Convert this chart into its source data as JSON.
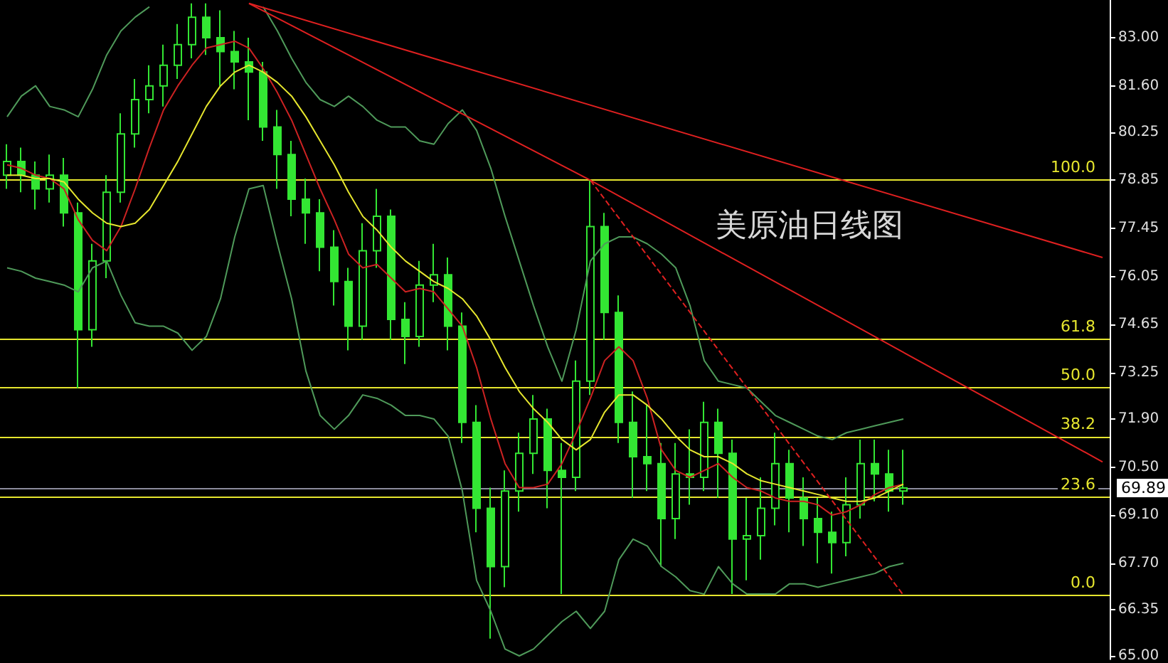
{
  "chart_data": {
    "type": "candlestick",
    "title": "美原油日线图",
    "categories": [
      null,
      null,
      null,
      null,
      null,
      null,
      null,
      null,
      null,
      null,
      null,
      null,
      null,
      null,
      null,
      null,
      null,
      null,
      null,
      null,
      null,
      null,
      null,
      null,
      null,
      null,
      null,
      null,
      null,
      null,
      null,
      null,
      null,
      null,
      null,
      null,
      null,
      null,
      null,
      null,
      null,
      null,
      null,
      null,
      null,
      null,
      null,
      null,
      null,
      null,
      null,
      null,
      null,
      null,
      null,
      null,
      null,
      null,
      null,
      null,
      null,
      null,
      null,
      null,
      null,
      null,
      null,
      null,
      null,
      null,
      null,
      null,
      null,
      null,
      null,
      null,
      null,
      null
    ],
    "color": "#33e633",
    "ohlc": [
      [
        79.0,
        79.9,
        78.6,
        79.4
      ],
      [
        79.4,
        79.8,
        78.5,
        79.0
      ],
      [
        79.0,
        79.4,
        78.0,
        78.6
      ],
      [
        78.6,
        79.6,
        78.2,
        79.0
      ],
      [
        79.0,
        79.5,
        77.5,
        77.9
      ],
      [
        77.9,
        78.2,
        72.8,
        74.5
      ],
      [
        74.5,
        77.0,
        74.0,
        76.5
      ],
      [
        76.5,
        79.0,
        76.0,
        78.5
      ],
      [
        78.5,
        80.8,
        78.2,
        80.2
      ],
      [
        80.2,
        81.8,
        79.8,
        81.2
      ],
      [
        81.2,
        82.2,
        80.8,
        81.6
      ],
      [
        81.6,
        82.8,
        81.0,
        82.2
      ],
      [
        82.2,
        83.4,
        81.8,
        82.8
      ],
      [
        82.8,
        84.0,
        82.4,
        83.6
      ],
      [
        83.6,
        84.0,
        82.5,
        83.0
      ],
      [
        83.0,
        83.8,
        81.6,
        82.6
      ],
      [
        82.6,
        83.2,
        81.5,
        82.3
      ],
      [
        82.3,
        83.0,
        80.6,
        82.0
      ],
      [
        82.0,
        82.3,
        80.0,
        80.4
      ],
      [
        80.4,
        80.9,
        78.6,
        79.6
      ],
      [
        79.6,
        80.0,
        77.8,
        78.3
      ],
      [
        78.3,
        78.9,
        77.0,
        77.9
      ],
      [
        77.9,
        78.3,
        76.2,
        76.9
      ],
      [
        76.9,
        77.4,
        75.2,
        75.9
      ],
      [
        75.9,
        76.3,
        73.9,
        74.6
      ],
      [
        74.6,
        77.6,
        74.2,
        76.8
      ],
      [
        76.8,
        78.6,
        76.3,
        77.8
      ],
      [
        77.8,
        78.0,
        74.2,
        74.8
      ],
      [
        74.8,
        75.3,
        73.5,
        74.3
      ],
      [
        74.3,
        76.5,
        74.0,
        75.8
      ],
      [
        75.8,
        77.0,
        75.3,
        76.1
      ],
      [
        76.1,
        76.6,
        73.9,
        74.6
      ],
      [
        74.6,
        75.0,
        71.2,
        71.8
      ],
      [
        71.8,
        72.3,
        68.6,
        69.3
      ],
      [
        69.3,
        69.9,
        65.5,
        67.6
      ],
      [
        67.6,
        70.4,
        67.0,
        69.8
      ],
      [
        69.8,
        71.5,
        69.2,
        70.9
      ],
      [
        70.9,
        72.6,
        70.3,
        71.9
      ],
      [
        71.9,
        72.2,
        69.3,
        70.4
      ],
      [
        70.4,
        71.2,
        66.8,
        70.2
      ],
      [
        70.2,
        73.6,
        69.8,
        73.0
      ],
      [
        73.0,
        78.85,
        72.6,
        77.5
      ],
      [
        77.5,
        77.9,
        74.2,
        75.0
      ],
      [
        75.0,
        75.5,
        71.2,
        71.8
      ],
      [
        71.8,
        72.7,
        69.6,
        70.8
      ],
      [
        70.8,
        72.3,
        69.8,
        70.6
      ],
      [
        70.6,
        71.2,
        67.6,
        69.0
      ],
      [
        69.0,
        71.2,
        68.4,
        70.3
      ],
      [
        70.3,
        71.6,
        69.4,
        70.2
      ],
      [
        70.2,
        72.4,
        69.8,
        71.8
      ],
      [
        71.8,
        72.2,
        69.6,
        70.9
      ],
      [
        70.9,
        71.3,
        66.8,
        68.4
      ],
      [
        68.4,
        69.6,
        67.2,
        68.5
      ],
      [
        68.5,
        70.2,
        67.8,
        69.3
      ],
      [
        69.3,
        71.5,
        68.8,
        70.6
      ],
      [
        70.6,
        71.0,
        68.6,
        69.6
      ],
      [
        69.6,
        70.2,
        68.2,
        69.0
      ],
      [
        69.0,
        69.6,
        67.7,
        68.6
      ],
      [
        68.6,
        69.2,
        67.4,
        68.3
      ],
      [
        68.3,
        70.2,
        67.9,
        69.4
      ],
      [
        69.4,
        71.3,
        69.0,
        70.6
      ],
      [
        70.6,
        71.3,
        69.5,
        70.3
      ],
      [
        70.3,
        71.0,
        69.2,
        69.8
      ],
      [
        69.8,
        71.0,
        69.4,
        69.89
      ],
      null,
      null,
      null,
      null,
      null,
      null,
      null,
      null,
      null,
      null,
      null,
      null,
      null,
      null
    ],
    "series": [
      {
        "type": "line",
        "color": "#cc2222",
        "values": [
          79.3,
          79.2,
          79.0,
          78.9,
          78.6,
          77.7,
          77.1,
          76.8,
          77.5,
          78.6,
          79.8,
          80.9,
          81.6,
          82.2,
          82.7,
          82.8,
          82.9,
          82.7,
          82.1,
          81.4,
          80.6,
          79.6,
          78.6,
          77.7,
          76.7,
          76.3,
          76.4,
          76.0,
          75.6,
          75.7,
          75.6,
          75.1,
          74.6,
          73.4,
          71.9,
          70.6,
          69.9,
          69.9,
          70.0,
          70.6,
          71.5,
          72.5,
          73.6,
          74.0,
          73.6,
          72.5,
          71.0,
          70.4,
          70.2,
          70.4,
          70.6,
          70.2,
          69.9,
          69.8,
          69.6,
          69.5,
          69.5,
          69.4,
          69.1,
          69.2,
          69.4,
          69.7,
          69.9,
          70.0,
          null,
          null,
          null,
          null,
          null,
          null,
          null,
          null,
          null,
          null,
          null,
          null,
          null,
          null
        ]
      },
      {
        "type": "line",
        "color": "#e6e62e",
        "values": [
          79.0,
          79.0,
          78.9,
          78.9,
          78.8,
          78.3,
          77.9,
          77.6,
          77.5,
          77.6,
          78.0,
          78.7,
          79.4,
          80.2,
          81.0,
          81.6,
          82.0,
          82.2,
          82.0,
          81.7,
          81.3,
          80.7,
          80.0,
          79.3,
          78.5,
          77.8,
          77.4,
          76.9,
          76.5,
          76.2,
          75.9,
          75.7,
          75.4,
          74.9,
          74.2,
          73.4,
          72.7,
          72.2,
          71.8,
          71.3,
          71.0,
          71.3,
          72.1,
          72.6,
          72.6,
          72.3,
          71.9,
          71.4,
          71.0,
          70.8,
          70.8,
          70.6,
          70.3,
          70.1,
          70.0,
          69.9,
          69.8,
          69.7,
          69.6,
          69.5,
          69.5,
          69.6,
          69.8,
          70.0,
          null,
          null,
          null,
          null,
          null,
          null,
          null,
          null,
          null,
          null,
          null,
          null,
          null,
          null
        ]
      },
      {
        "type": "line",
        "color": "#4f9a5a",
        "values": [
          80.7,
          81.3,
          81.6,
          81.0,
          80.9,
          80.7,
          81.5,
          82.5,
          83.2,
          83.6,
          83.9,
          null,
          null,
          null,
          null,
          null,
          null,
          null,
          83.9,
          83.2,
          82.4,
          81.7,
          81.2,
          81.0,
          81.3,
          81.0,
          80.6,
          80.4,
          80.4,
          80.0,
          79.9,
          80.5,
          80.9,
          80.3,
          79.2,
          77.8,
          76.5,
          75.2,
          74.0,
          73.0,
          74.5,
          76.5,
          77.0,
          77.2,
          77.2,
          77.0,
          76.7,
          76.3,
          75.2,
          73.6,
          73.0,
          72.9,
          72.8,
          72.4,
          72.0,
          71.8,
          71.6,
          71.4,
          71.3,
          71.5,
          71.6,
          71.7,
          71.8,
          71.9,
          null,
          null,
          null,
          null,
          null,
          null,
          null,
          null,
          null,
          null,
          null,
          null,
          null,
          null
        ]
      },
      {
        "type": "line",
        "color": "#4f9a5a",
        "values": [
          76.3,
          76.2,
          76.0,
          75.9,
          75.8,
          75.6,
          76.3,
          76.5,
          75.5,
          74.7,
          74.6,
          74.6,
          74.4,
          73.9,
          74.3,
          75.4,
          77.2,
          78.6,
          78.7,
          77.0,
          75.4,
          73.3,
          72.0,
          71.6,
          72.0,
          72.6,
          72.5,
          72.3,
          72.0,
          72.0,
          71.9,
          71.4,
          69.8,
          67.2,
          66.3,
          65.2,
          65.0,
          65.2,
          65.6,
          66.0,
          66.3,
          65.8,
          66.3,
          67.8,
          68.4,
          68.2,
          67.6,
          67.3,
          66.9,
          66.8,
          67.6,
          67.1,
          66.8,
          66.8,
          66.8,
          67.1,
          67.1,
          67.0,
          67.1,
          67.2,
          67.3,
          67.4,
          67.6,
          67.7,
          null,
          null,
          null,
          null,
          null,
          null,
          null,
          null,
          null,
          null,
          null,
          null,
          null,
          null
        ]
      },
      {
        "type": "line",
        "color": "#e02020",
        "values": [
          null,
          null,
          null,
          null,
          null,
          null,
          null,
          null,
          null,
          null,
          null,
          null,
          null,
          null,
          null,
          null,
          null,
          84.0,
          null,
          null,
          null,
          null,
          null,
          null,
          null,
          null,
          null,
          null,
          null,
          null,
          null,
          null,
          null,
          null,
          null,
          null,
          null,
          null,
          null,
          null,
          null,
          null,
          null,
          null,
          null,
          null,
          null,
          null,
          null,
          null,
          null,
          null,
          null,
          null,
          null,
          null,
          null,
          null,
          null,
          null,
          null,
          null,
          null,
          null,
          null,
          null,
          null,
          null,
          null,
          null,
          null,
          null,
          null,
          null,
          null,
          null,
          null,
          76.6
        ]
      },
      {
        "type": "line",
        "color": "#e02020",
        "values": [
          null,
          null,
          null,
          null,
          null,
          null,
          null,
          null,
          null,
          null,
          null,
          null,
          null,
          null,
          null,
          null,
          null,
          84.0,
          null,
          null,
          null,
          null,
          null,
          null,
          null,
          null,
          null,
          null,
          null,
          null,
          null,
          null,
          null,
          null,
          null,
          null,
          null,
          null,
          null,
          null,
          null,
          78.85,
          null,
          null,
          null,
          null,
          null,
          null,
          null,
          null,
          null,
          null,
          null,
          null,
          null,
          null,
          null,
          null,
          null,
          null,
          null,
          null,
          null,
          null,
          null,
          null,
          null,
          null,
          null,
          null,
          null,
          null,
          null,
          null,
          null,
          null,
          null,
          70.65
        ]
      },
      {
        "type": "line",
        "color": "#e02020",
        "line_style": "dashed",
        "values": [
          null,
          null,
          null,
          null,
          null,
          null,
          null,
          null,
          null,
          null,
          null,
          null,
          null,
          null,
          null,
          null,
          null,
          null,
          null,
          null,
          null,
          null,
          null,
          null,
          null,
          null,
          null,
          null,
          null,
          null,
          null,
          null,
          null,
          null,
          null,
          null,
          null,
          null,
          null,
          null,
          null,
          78.85,
          null,
          null,
          null,
          null,
          null,
          null,
          null,
          null,
          null,
          null,
          null,
          null,
          null,
          null,
          null,
          null,
          null,
          null,
          null,
          null,
          null,
          66.77,
          null,
          null,
          null,
          null,
          null,
          null,
          null,
          null,
          null,
          null,
          null,
          null,
          null,
          null
        ]
      }
    ],
    "ref_lines": [
      {
        "axis": "y",
        "value": 78.85,
        "color": "#e6e62e"
      },
      {
        "axis": "y",
        "value": 74.22,
        "color": "#e6e62e"
      },
      {
        "axis": "y",
        "value": 72.81,
        "color": "#e6e62e"
      },
      {
        "axis": "y",
        "value": 71.38,
        "color": "#e6e62e"
      },
      {
        "axis": "y",
        "value": 69.62,
        "color": "#e6e62e"
      },
      {
        "axis": "y",
        "value": 66.77,
        "color": "#e6e62e"
      },
      {
        "axis": "y",
        "value": 69.89,
        "label": "69.89",
        "color": "#8c8c9c"
      }
    ],
    "annotations": [
      {
        "text": "100.0",
        "y": 78.85
      },
      {
        "text": "61.8",
        "y": 74.22
      },
      {
        "text": "50.0",
        "y": 72.81
      },
      {
        "text": "38.2",
        "y": 71.38
      },
      {
        "text": "23.6",
        "y": 69.62
      },
      {
        "text": "0.0",
        "y": 66.77
      }
    ],
    "ylim": [
      64.9,
      84.1
    ],
    "yticks": [
      {
        "value": 65.0,
        "label": "65.00"
      },
      {
        "value": 66.35,
        "label": "66.35"
      },
      {
        "value": 67.7,
        "label": "67.70"
      },
      {
        "value": 69.1,
        "label": "69.10"
      },
      {
        "value": 70.5,
        "label": "70.50"
      },
      {
        "value": 71.9,
        "label": "71.90"
      },
      {
        "value": 73.25,
        "label": "73.25"
      },
      {
        "value": 74.65,
        "label": "74.65"
      },
      {
        "value": 76.05,
        "label": "76.05"
      },
      {
        "value": 77.45,
        "label": "77.45"
      },
      {
        "value": 78.85,
        "label": "78.85"
      },
      {
        "value": 80.25,
        "label": "80.25"
      },
      {
        "value": 81.6,
        "label": "81.60"
      },
      {
        "value": 83.0,
        "label": "83.00"
      }
    ],
    "tick_labels": "y",
    "grid": false,
    "marker": "none"
  }
}
